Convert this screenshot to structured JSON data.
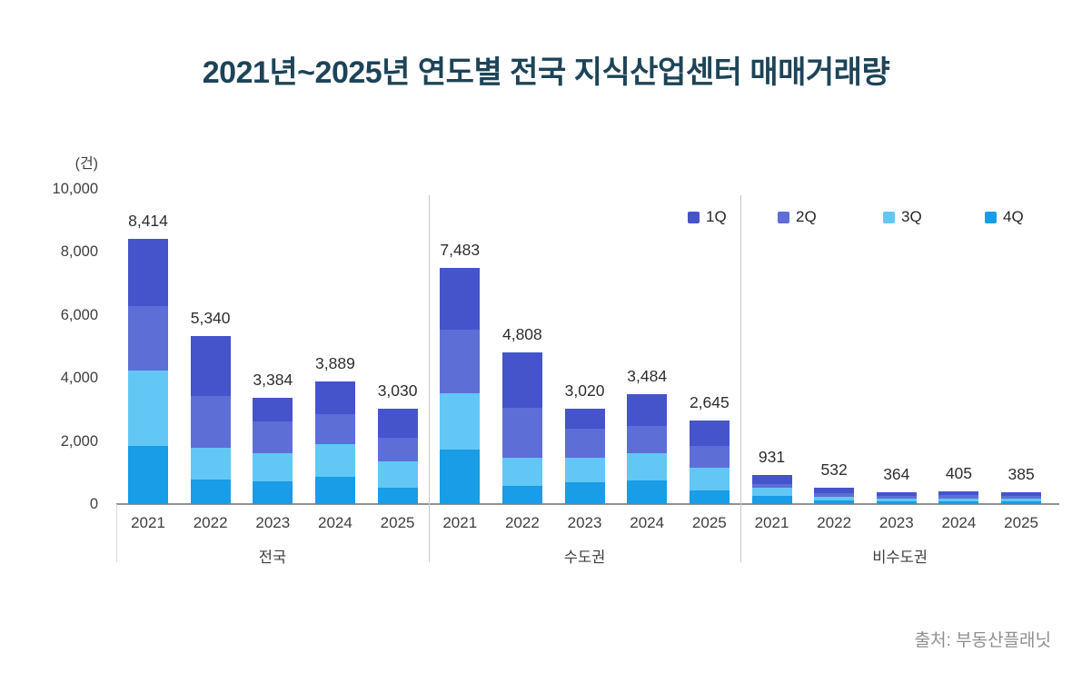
{
  "title": "2021년~2025년 연도별 전국 지식산업센터 매매거래량",
  "source": "출처: 부동산플래닛",
  "chart_data": {
    "type": "bar",
    "stacked": true,
    "title": "2021년~2025년 연도별 전국 지식산업센터 매매거래량",
    "unit_label": "(건)",
    "ylim": [
      0,
      10000
    ],
    "y_ticks": [
      0,
      2000,
      4000,
      6000,
      8000,
      10000
    ],
    "y_tick_labels": [
      "0",
      "2,000",
      "4,000",
      "6,000",
      "8,000",
      "10,000"
    ],
    "grid": false,
    "legend_position": "top-right",
    "series": [
      {
        "name": "1Q",
        "color": "#4554cb"
      },
      {
        "name": "2Q",
        "color": "#5e6ed7"
      },
      {
        "name": "3Q",
        "color": "#62c7f5"
      },
      {
        "name": "4Q",
        "color": "#189de6"
      }
    ],
    "stack_order_bottom_to_top": [
      "4Q",
      "3Q",
      "2Q",
      "1Q"
    ],
    "groups": [
      {
        "label": "전국",
        "bars": [
          {
            "year": "2021",
            "total": 8414,
            "values": [
              2130,
              2040,
              2390,
              1854
            ]
          },
          {
            "year": "2022",
            "total": 5340,
            "values": [
              1900,
              1645,
              1010,
              785
            ]
          },
          {
            "year": "2023",
            "total": 3384,
            "values": [
              770,
              1000,
              885,
              729
            ]
          },
          {
            "year": "2024",
            "total": 3889,
            "values": [
              1025,
              970,
              1025,
              869
            ]
          },
          {
            "year": "2025",
            "total": 3030,
            "values": [
              940,
              735,
              845,
              510
            ]
          }
        ]
      },
      {
        "label": "수도권",
        "bars": [
          {
            "year": "2021",
            "total": 7483,
            "values": [
              1945,
              2015,
              1795,
              1728
            ]
          },
          {
            "year": "2022",
            "total": 4808,
            "values": [
              1760,
              1580,
              885,
              583
            ]
          },
          {
            "year": "2023",
            "total": 3020,
            "values": [
              620,
              935,
              760,
              705
            ]
          },
          {
            "year": "2024",
            "total": 3484,
            "values": [
              1000,
              880,
              850,
              754
            ]
          },
          {
            "year": "2025",
            "total": 2645,
            "values": [
              790,
              705,
              705,
              445
            ]
          }
        ]
      },
      {
        "label": "비수도권",
        "bars": [
          {
            "year": "2021",
            "total": 931,
            "values": [
              290,
              110,
              270,
              261
            ]
          },
          {
            "year": "2022",
            "total": 532,
            "values": [
              180,
              115,
              120,
              117
            ]
          },
          {
            "year": "2023",
            "total": 364,
            "values": [
              115,
              90,
              80,
              79
            ]
          },
          {
            "year": "2024",
            "total": 405,
            "values": [
              130,
              95,
              90,
              90
            ]
          },
          {
            "year": "2025",
            "total": 385,
            "values": [
              125,
              95,
              85,
              80
            ]
          }
        ]
      }
    ]
  }
}
